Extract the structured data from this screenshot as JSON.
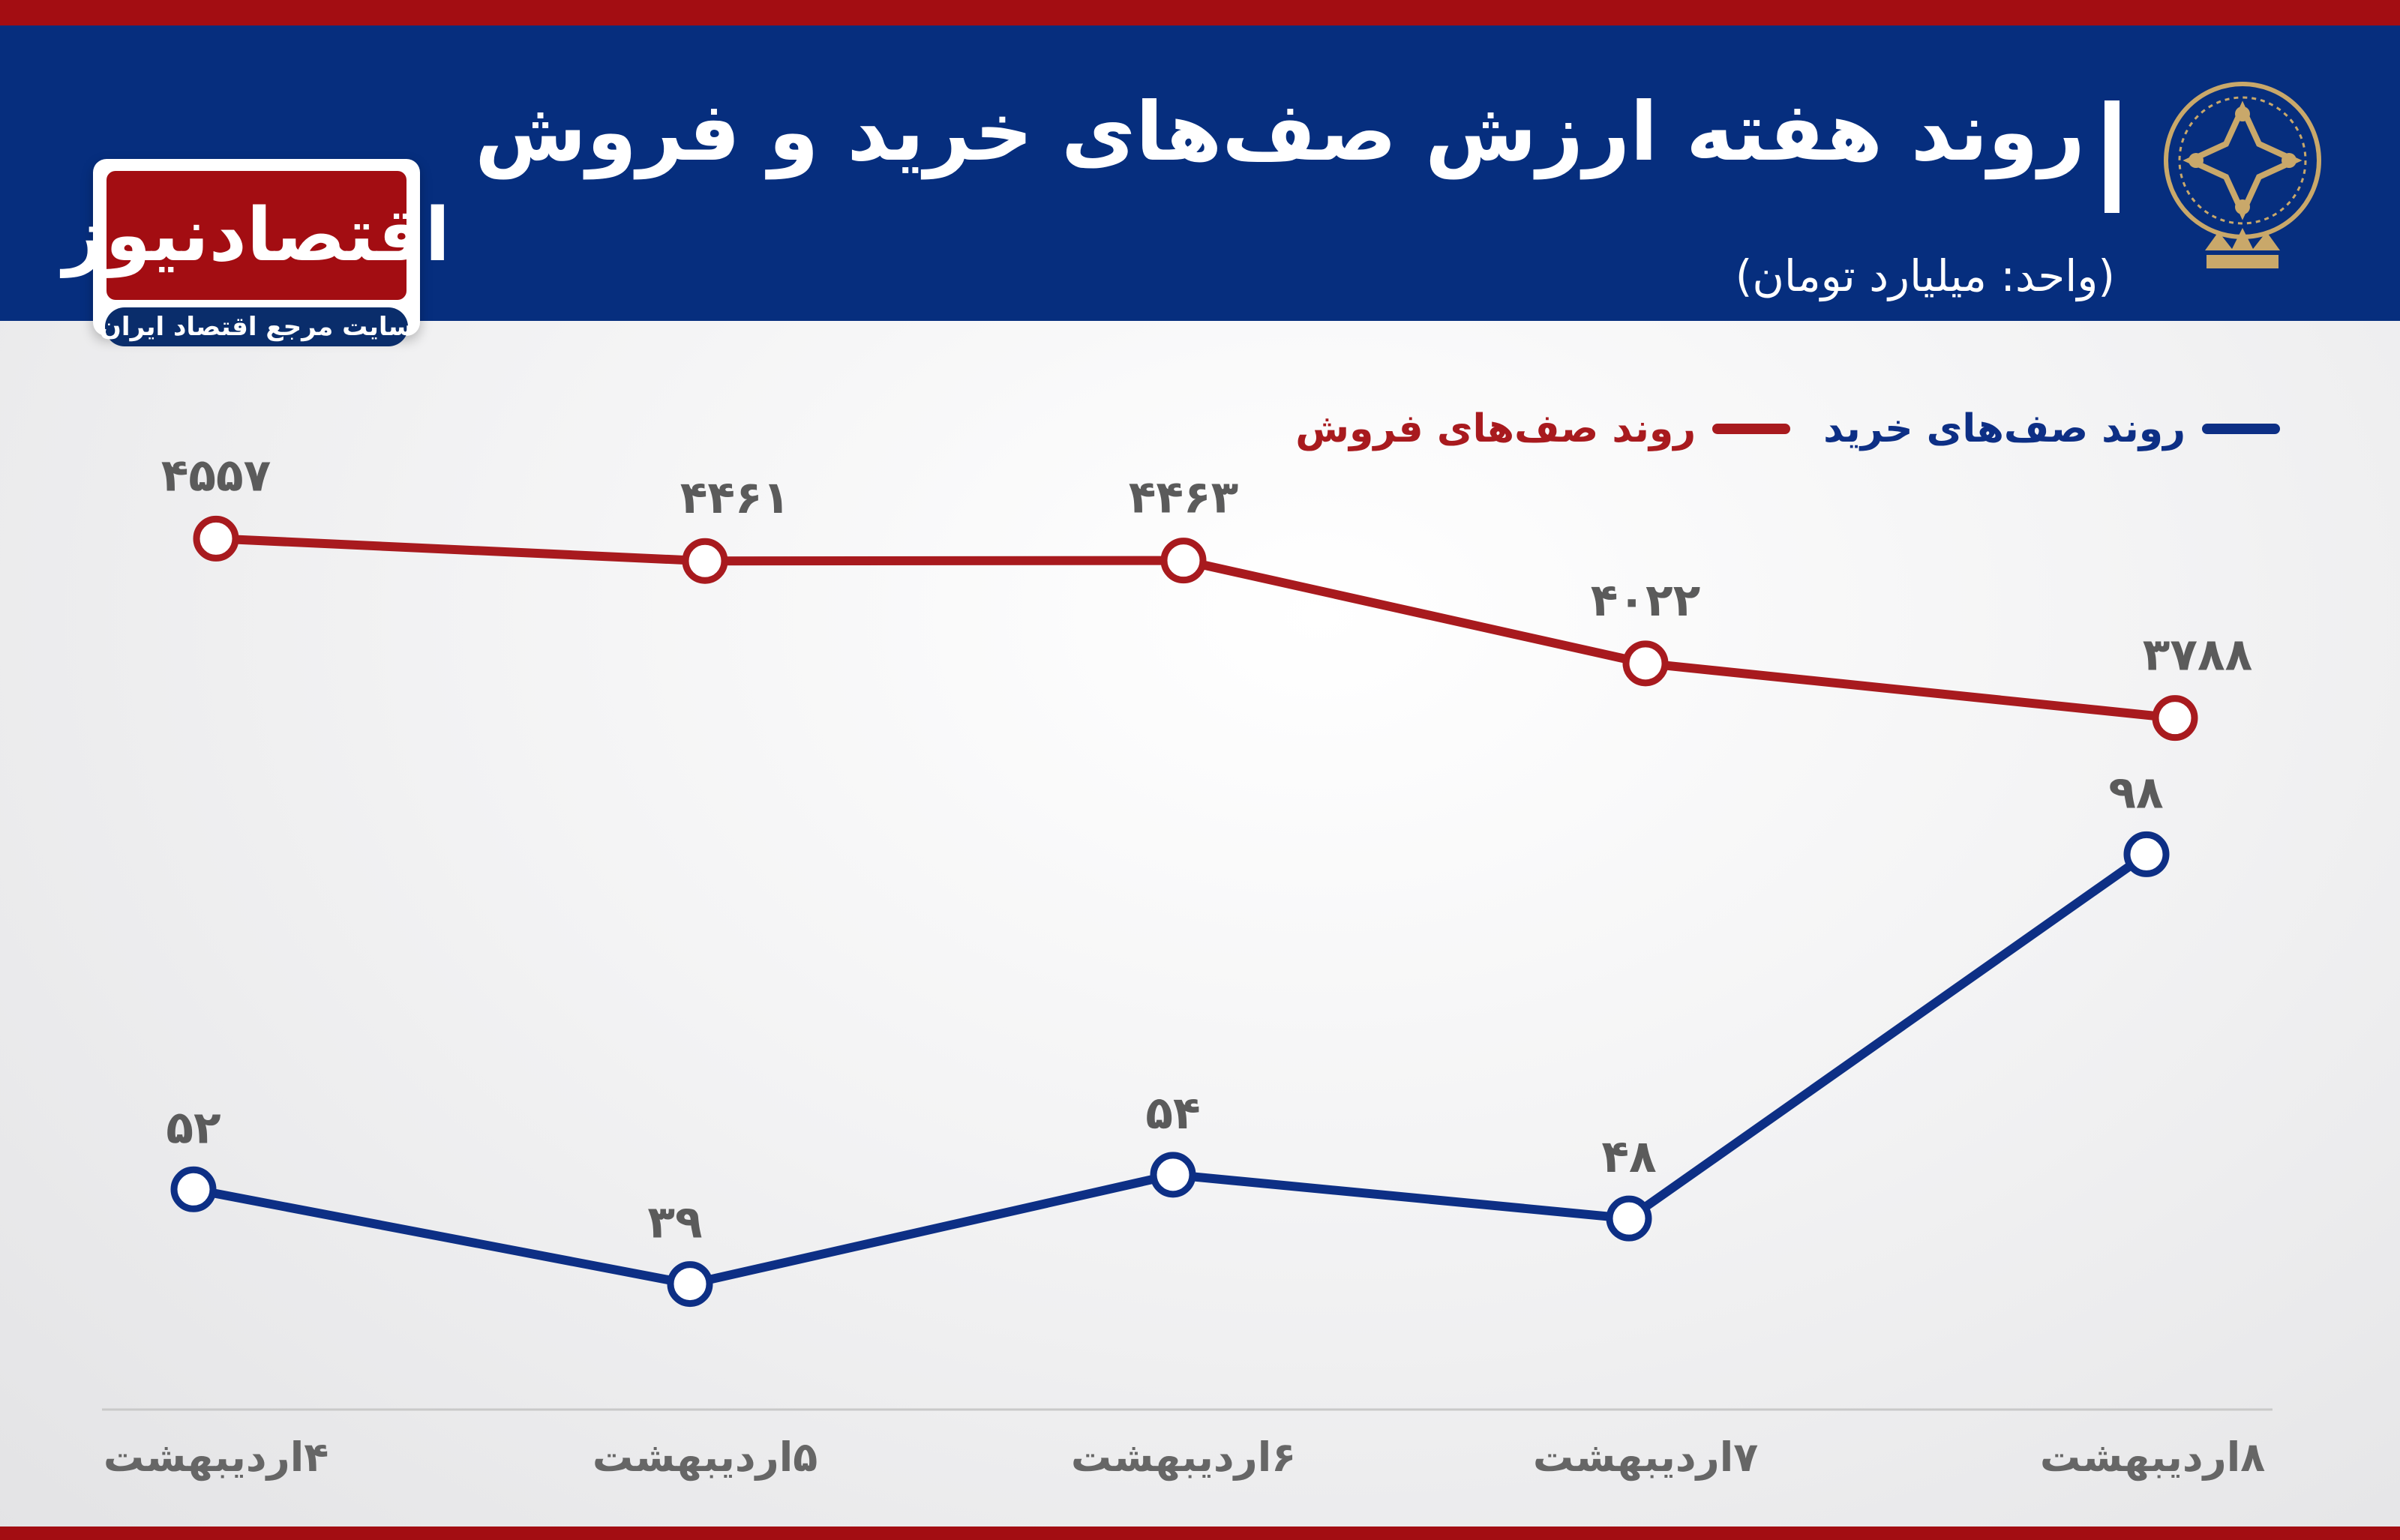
{
  "header": {
    "title": "روند هفته ارزش صف‌های خرید و فروش",
    "unit_label": "(واحد: میلیارد تومان)"
  },
  "logo": {
    "brand_name": "اقتصادنیوز",
    "tagline": "سایت مرجع اقتصاد ایران"
  },
  "colors": {
    "header_bg": "#062e7e",
    "accent_red": "#a30d12",
    "buy_series": "#0d2f85",
    "sell_series": "#a81a1e",
    "value_label": "#5b5b5b"
  },
  "chart_data": {
    "type": "line",
    "title": "روند هفته ارزش صف‌های خرید و فروش",
    "unit": "(واحد: میلیارد تومان)",
    "categories": [
      "۴اردیبهشت",
      "۵اردیبهشت",
      "۶اردیبهشت",
      "۷اردیبهشت",
      "۸اردیبهشت"
    ],
    "series": [
      {
        "name": "روند صف‌های فروش",
        "color": "#a81a1e",
        "values": [
          4557,
          4461,
          4463,
          4022,
          3788
        ],
        "labels": [
          "۴۵۵۷",
          "۴۴۶۱",
          "۴۴۶۳",
          "۴۰۲۲",
          "۳۷۸۸"
        ]
      },
      {
        "name": "روند صف‌های خرید",
        "color": "#0d2f85",
        "values": [
          52,
          39,
          54,
          48,
          98
        ],
        "labels": [
          "۵۲",
          "۳۹",
          "۵۴",
          "۴۸",
          "۹۸"
        ]
      }
    ],
    "legend_position": "top-right",
    "grid": false
  }
}
